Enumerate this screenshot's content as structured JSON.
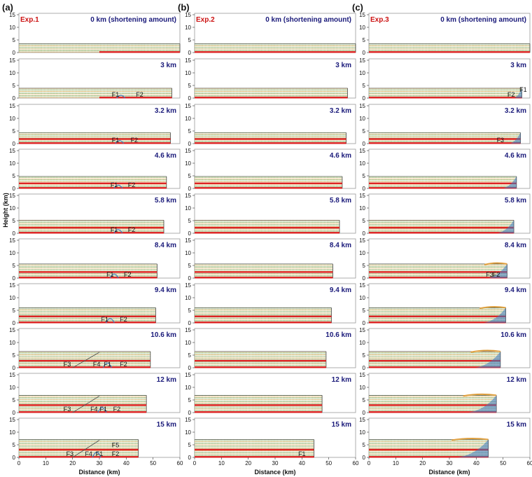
{
  "columns": [
    {
      "tag": "(a)",
      "experiment": "Exp.1"
    },
    {
      "tag": "(b)",
      "experiment": "Exp.2"
    },
    {
      "tag": "(c)",
      "experiment": "Exp.3"
    }
  ],
  "stages": [
    "0 km (shortening amount)",
    "3 km",
    "3.2 km",
    "4.6 km",
    "5.8 km",
    "8.4 km",
    "9.4 km",
    "10.6 km",
    "12 km",
    "15 km"
  ],
  "y_ticks": [
    "15",
    "10",
    "5",
    "0"
  ],
  "x_ticks": [
    "0",
    "10",
    "20",
    "30",
    "40",
    "50",
    "60"
  ],
  "y_axis_label": "Height (km)",
  "x_axis_label": "Distance (km)",
  "model_right_edge_km": [
    60,
    57,
    56.5,
    55,
    54,
    51.5,
    51,
    49,
    47.5,
    44.5
  ],
  "colors": {
    "layer_a": "#7aa04a",
    "layer_b": "#e0a040",
    "weak_layer": "#dd2222",
    "fault_zone": "#3a78c0",
    "stage_text": "#1a1a7a",
    "exp_text": "#cc1111"
  },
  "fault_labels": [
    {
      "col": 0,
      "row": 1,
      "items": [
        {
          "t": "F1",
          "km": 36
        },
        {
          "t": "F2",
          "km": 45
        }
      ]
    },
    {
      "col": 0,
      "row": 2,
      "items": [
        {
          "t": "F1",
          "km": 36
        },
        {
          "t": "F2",
          "km": 43
        }
      ]
    },
    {
      "col": 0,
      "row": 3,
      "items": [
        {
          "t": "F1",
          "km": 35.5
        },
        {
          "t": "F2",
          "km": 42
        }
      ]
    },
    {
      "col": 0,
      "row": 4,
      "items": [
        {
          "t": "F1",
          "km": 35.5
        },
        {
          "t": "F2",
          "km": 42
        }
      ]
    },
    {
      "col": 0,
      "row": 5,
      "items": [
        {
          "t": "F1",
          "km": 34
        },
        {
          "t": "F2",
          "km": 40.5
        }
      ]
    },
    {
      "col": 0,
      "row": 6,
      "items": [
        {
          "t": "F1",
          "km": 32
        },
        {
          "t": "F2",
          "km": 39
        }
      ]
    },
    {
      "col": 0,
      "row": 7,
      "items": [
        {
          "t": "F3",
          "km": 18
        },
        {
          "t": "F4",
          "km": 29
        },
        {
          "t": "F1",
          "km": 33
        },
        {
          "t": "F2",
          "km": 39
        }
      ]
    },
    {
      "col": 0,
      "row": 8,
      "items": [
        {
          "t": "F3",
          "km": 18
        },
        {
          "t": "F4",
          "km": 28
        },
        {
          "t": "F1",
          "km": 31.5
        },
        {
          "t": "F2",
          "km": 36.5
        }
      ]
    },
    {
      "col": 0,
      "row": 9,
      "items": [
        {
          "t": "F3",
          "km": 19
        },
        {
          "t": "F4",
          "km": 26
        },
        {
          "t": "F1",
          "km": 30
        },
        {
          "t": "F2",
          "km": 36
        },
        {
          "t": "F5",
          "km": 36
        }
      ]
    },
    {
      "col": 1,
      "row": 9,
      "items": [
        {
          "t": "F1",
          "km": 40
        }
      ]
    },
    {
      "col": 2,
      "row": 1,
      "items": [
        {
          "t": "F1",
          "km": 57.5
        },
        {
          "t": "F2",
          "km": 53
        }
      ]
    },
    {
      "col": 2,
      "row": 2,
      "items": [
        {
          "t": "F3",
          "km": 49
        }
      ]
    },
    {
      "col": 2,
      "row": 5,
      "items": [
        {
          "t": "F2",
          "km": 47.5
        },
        {
          "t": "F3",
          "km": 45
        }
      ]
    }
  ]
}
